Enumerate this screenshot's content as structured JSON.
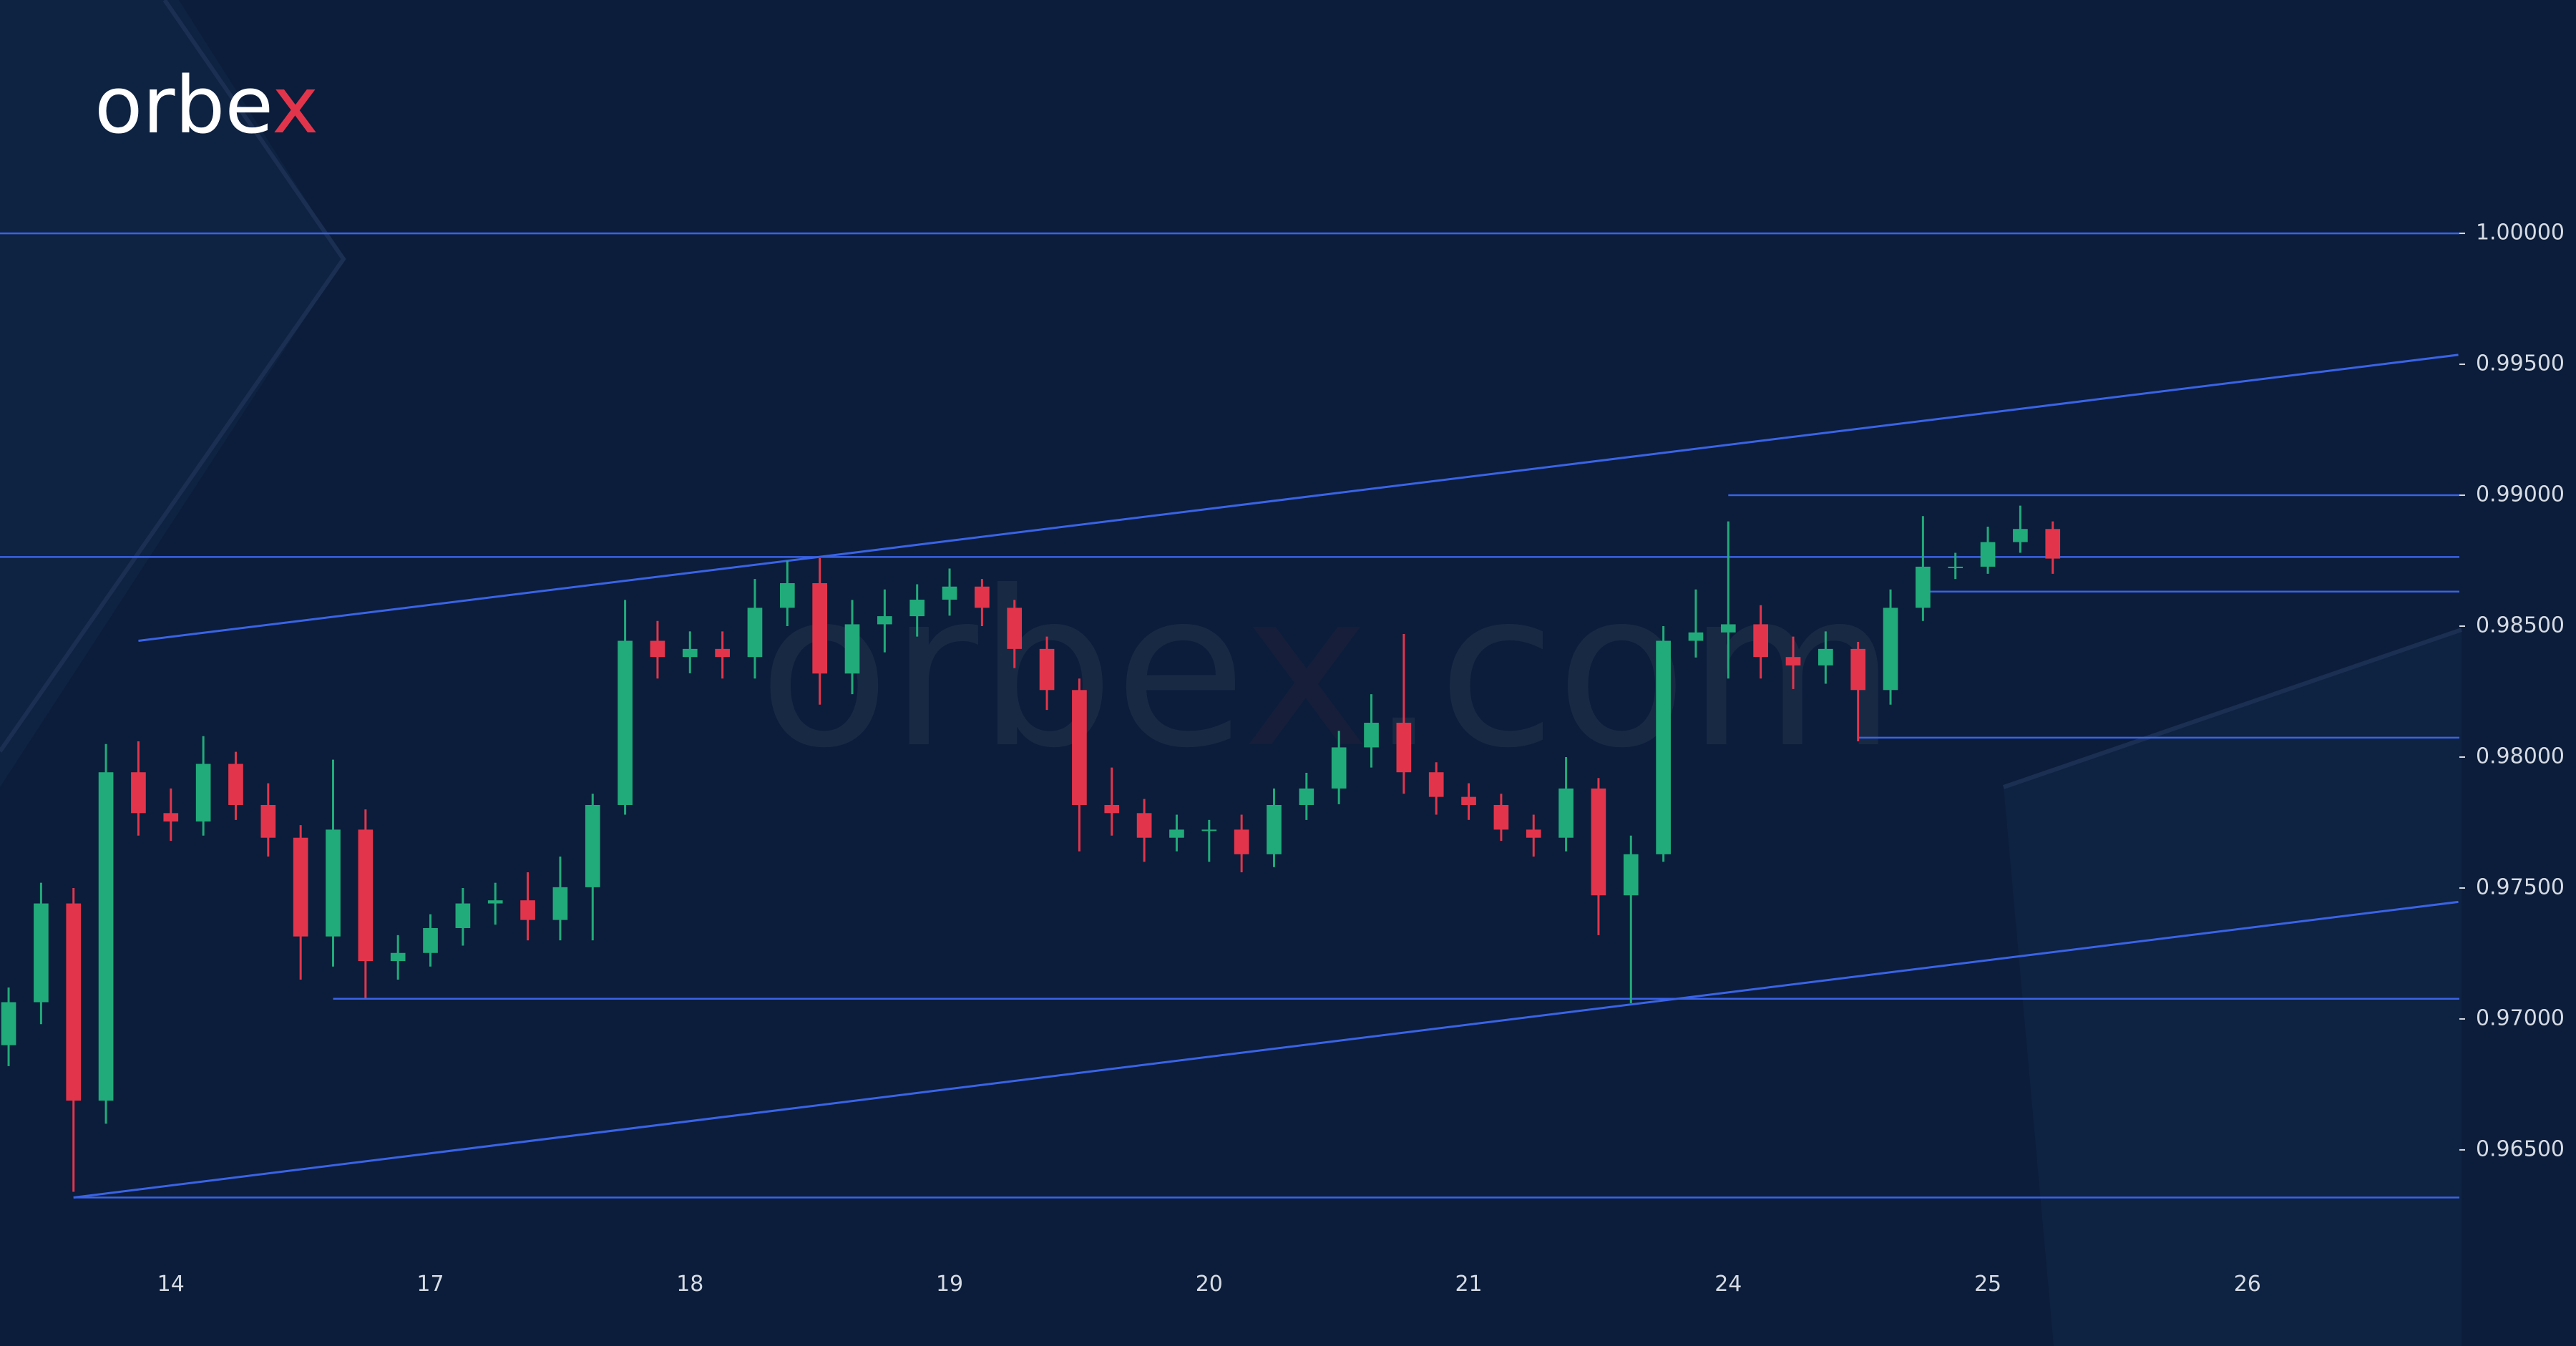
{
  "chart_data": {
    "type": "candlestick",
    "logo": [
      "orbe",
      "x"
    ],
    "watermark": [
      "orbe",
      "x",
      ".com"
    ],
    "categories": [
      null,
      null,
      null,
      null,
      null,
      "14",
      null,
      null,
      null,
      null,
      null,
      null,
      null,
      "17",
      null,
      null,
      null,
      null,
      null,
      null,
      null,
      "18",
      null,
      null,
      null,
      null,
      null,
      null,
      null,
      "19",
      null,
      null,
      null,
      null,
      null,
      null,
      null,
      "20",
      null,
      null,
      null,
      null,
      null,
      null,
      null,
      "21",
      null,
      null,
      null,
      null,
      null,
      null,
      null,
      "24",
      null,
      null,
      null,
      null,
      null,
      null,
      null,
      "25",
      null,
      null,
      null,
      null,
      null,
      null,
      null,
      "26"
    ],
    "open": [
      0.969,
      0.97064,
      0.97441,
      0.96688,
      0.97942,
      0.97786,
      0.97754,
      0.97974,
      0.97817,
      0.97692,
      0.97315,
      0.97723,
      0.97221,
      0.97252,
      0.97347,
      0.97441,
      0.97453,
      0.97378,
      0.97503,
      0.97817,
      0.98444,
      0.98382,
      0.98413,
      0.98382,
      0.9857,
      0.98664,
      0.98319,
      0.98507,
      0.98538,
      0.98601,
      0.98651,
      0.9857,
      0.98413,
      0.98256,
      0.97817,
      0.97786,
      0.97692,
      0.97723,
      0.97723,
      0.97629,
      0.97817,
      0.9788,
      0.98037,
      0.98131,
      0.97942,
      0.97848,
      0.97817,
      0.97723,
      0.97692,
      0.9788,
      0.97472,
      0.97629,
      0.98444,
      0.98476,
      0.98507,
      0.98382,
      0.9835,
      0.98413,
      0.98256,
      0.9857,
      0.98727,
      0.98727,
      0.98821,
      0.98871,
      null,
      null,
      null,
      null,
      null,
      null
    ],
    "high": [
      0.9712,
      0.9752,
      0.975,
      0.9805,
      0.9806,
      0.9788,
      0.9808,
      0.9802,
      0.979,
      0.9774,
      0.9799,
      0.978,
      0.9732,
      0.974,
      0.975,
      0.9752,
      0.9756,
      0.9762,
      0.9786,
      0.986,
      0.9852,
      0.9848,
      0.9848,
      0.9868,
      0.9875,
      0.9876,
      0.986,
      0.9864,
      0.9866,
      0.9872,
      0.9868,
      0.986,
      0.9846,
      0.983,
      0.9796,
      0.9784,
      0.9778,
      0.9776,
      0.9778,
      0.9788,
      0.9794,
      0.981,
      0.9824,
      0.9847,
      0.9798,
      0.979,
      0.9786,
      0.9778,
      0.98,
      0.9792,
      0.977,
      0.985,
      0.9864,
      0.989,
      0.9858,
      0.9846,
      0.9848,
      0.9844,
      0.9864,
      0.9892,
      0.9878,
      0.9888,
      0.9896,
      0.989,
      null,
      null,
      null,
      null,
      null,
      null
    ],
    "low": [
      0.9682,
      0.9698,
      0.9634,
      0.966,
      0.977,
      0.9768,
      0.977,
      0.9776,
      0.9762,
      0.9715,
      0.972,
      0.9708,
      0.9715,
      0.972,
      0.9728,
      0.9736,
      0.973,
      0.973,
      0.973,
      0.9778,
      0.983,
      0.9832,
      0.983,
      0.983,
      0.985,
      0.982,
      0.9824,
      0.984,
      0.9846,
      0.9854,
      0.985,
      0.9834,
      0.9818,
      0.9764,
      0.977,
      0.976,
      0.9764,
      0.976,
      0.9756,
      0.9758,
      0.9776,
      0.9782,
      0.9796,
      0.9786,
      0.9778,
      0.9776,
      0.9768,
      0.9762,
      0.9764,
      0.9732,
      0.9706,
      0.976,
      0.9838,
      0.983,
      0.983,
      0.9826,
      0.9828,
      0.9806,
      0.982,
      0.9852,
      0.9868,
      0.987,
      0.9878,
      0.987,
      null,
      null,
      null,
      null,
      null,
      null
    ],
    "close": [
      0.97064,
      0.97441,
      0.96688,
      0.97942,
      0.97786,
      0.97754,
      0.97974,
      0.97817,
      0.97692,
      0.97315,
      0.97723,
      0.97221,
      0.97252,
      0.97347,
      0.97441,
      0.97453,
      0.97378,
      0.97503,
      0.97817,
      0.98444,
      0.98382,
      0.98413,
      0.98382,
      0.9857,
      0.98664,
      0.98319,
      0.98507,
      0.98538,
      0.98601,
      0.98651,
      0.9857,
      0.98413,
      0.98256,
      0.97817,
      0.97786,
      0.97692,
      0.97723,
      0.97723,
      0.97629,
      0.97817,
      0.9788,
      0.98037,
      0.98131,
      0.97942,
      0.97848,
      0.97817,
      0.97723,
      0.97692,
      0.9788,
      0.97472,
      0.97629,
      0.98444,
      0.98476,
      0.98507,
      0.98382,
      0.9835,
      0.98413,
      0.98256,
      0.9857,
      0.98727,
      0.98727,
      0.98821,
      0.98871,
      0.98758,
      null,
      null,
      null,
      null,
      null,
      null
    ],
    "up_color": "#22ab7a",
    "down_color": "#e2354c",
    "line_color": "#3a63e6",
    "ylim": [
      0.96123,
      1.00891
    ],
    "yticks": [
      {
        "value": 0.965,
        "label": "0.96500"
      },
      {
        "value": 0.97,
        "label": "0.97000"
      },
      {
        "value": 0.975,
        "label": "0.97500"
      },
      {
        "value": 0.98,
        "label": "0.98000"
      },
      {
        "value": 0.985,
        "label": "0.98500"
      },
      {
        "value": 0.99,
        "label": "0.99000"
      },
      {
        "value": 0.995,
        "label": "0.99500"
      },
      {
        "value": 1.0,
        "label": "1.00000"
      }
    ],
    "levels": [
      {
        "value": 1.0
      },
      {
        "value": 0.98764
      },
      {
        "value": 0.99,
        "from": 53
      },
      {
        "value": 0.98632,
        "from": 59
      },
      {
        "value": 0.98074,
        "from": 57
      },
      {
        "value": 0.97077,
        "from": 10
      },
      {
        "value": 0.96318,
        "from": 2
      }
    ],
    "trendlines": [
      {
        "x": [
          4,
          75.5
        ],
        "y": [
          0.98444,
          0.99536
        ]
      },
      {
        "x": [
          2,
          75.5
        ],
        "y": [
          0.96318,
          0.97447
        ]
      }
    ]
  }
}
